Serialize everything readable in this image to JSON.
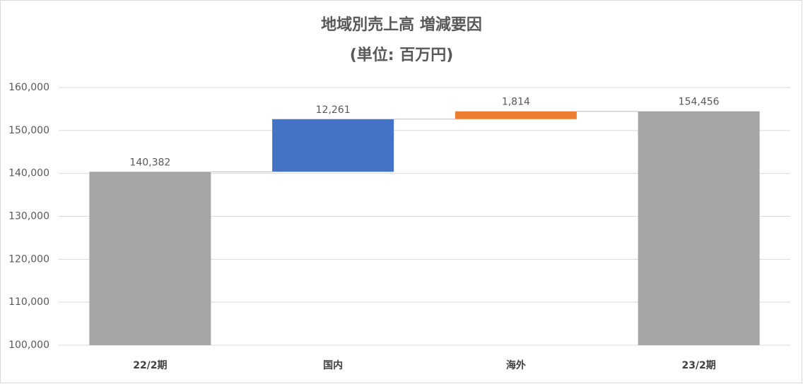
{
  "chart_data": {
    "type": "waterfall",
    "title": "地域別売上高 増減要因",
    "subtitle": "(単位: 百万円)",
    "categories": [
      "22/2期",
      "国内",
      "海外",
      "23/2期"
    ],
    "values": [
      140382,
      12261,
      1814,
      154456
    ],
    "value_labels": [
      "140,382",
      "12,261",
      "1,814",
      "154,456"
    ],
    "total": [
      true,
      false,
      false,
      true
    ],
    "colors": [
      "#a5a5a5",
      "#4472c4",
      "#ed7d31",
      "#a5a5a5"
    ],
    "ylim": [
      100000,
      160000
    ],
    "yticks": [
      {
        "value": 100000,
        "label": "100,000"
      },
      {
        "value": 110000,
        "label": "110,000"
      },
      {
        "value": 120000,
        "label": "120,000"
      },
      {
        "value": 130000,
        "label": "130,000"
      },
      {
        "value": 140000,
        "label": "140,000"
      },
      {
        "value": 150000,
        "label": "150,000"
      },
      {
        "value": 160000,
        "label": "160,000"
      }
    ],
    "grid": true
  }
}
